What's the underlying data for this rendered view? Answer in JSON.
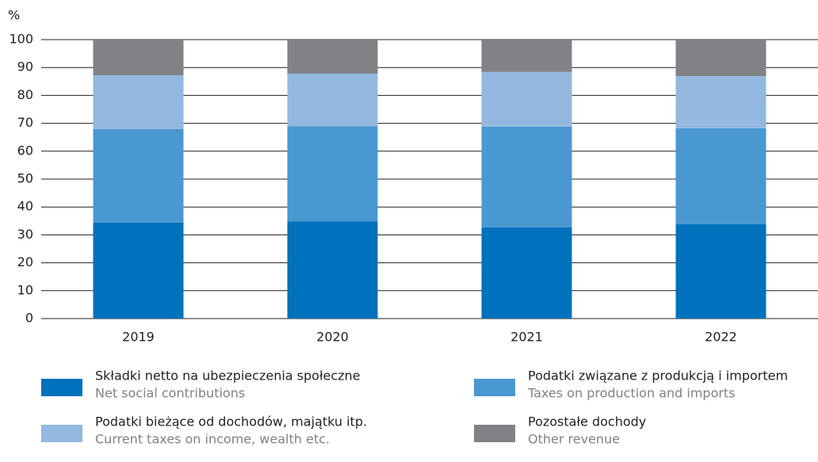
{
  "chart_data": {
    "type": "stacked_bar",
    "y_unit": "%",
    "categories": [
      "2019",
      "2020",
      "2021",
      "2022"
    ],
    "series": [
      {
        "name": "Składki netto na ubezpieczenia społeczne",
        "name_en": "Net social contributions",
        "color": "#0071bc",
        "values": [
          34.4,
          34.9,
          32.7,
          33.8
        ]
      },
      {
        "name": "Podatki związane z produkcją i importem",
        "name_en": "Taxes on production and imports",
        "color": "#4a98d1",
        "values": [
          33.5,
          34.1,
          36.1,
          34.4
        ]
      },
      {
        "name": "Podatki bieżące od dochodów, majątku itp.",
        "name_en": "Current taxes on income, wealth etc.",
        "color": "#93b9e0",
        "values": [
          19.3,
          18.8,
          19.6,
          18.7
        ]
      },
      {
        "name": "Pozostałe dochody",
        "name_en": "Other revenue",
        "color": "#808285",
        "values": [
          12.8,
          12.2,
          11.6,
          13.1
        ]
      }
    ],
    "ylim": [
      0,
      100
    ],
    "yticks": [
      0,
      10,
      20,
      30,
      40,
      50,
      60,
      70,
      80,
      90,
      100
    ],
    "grid": true
  }
}
